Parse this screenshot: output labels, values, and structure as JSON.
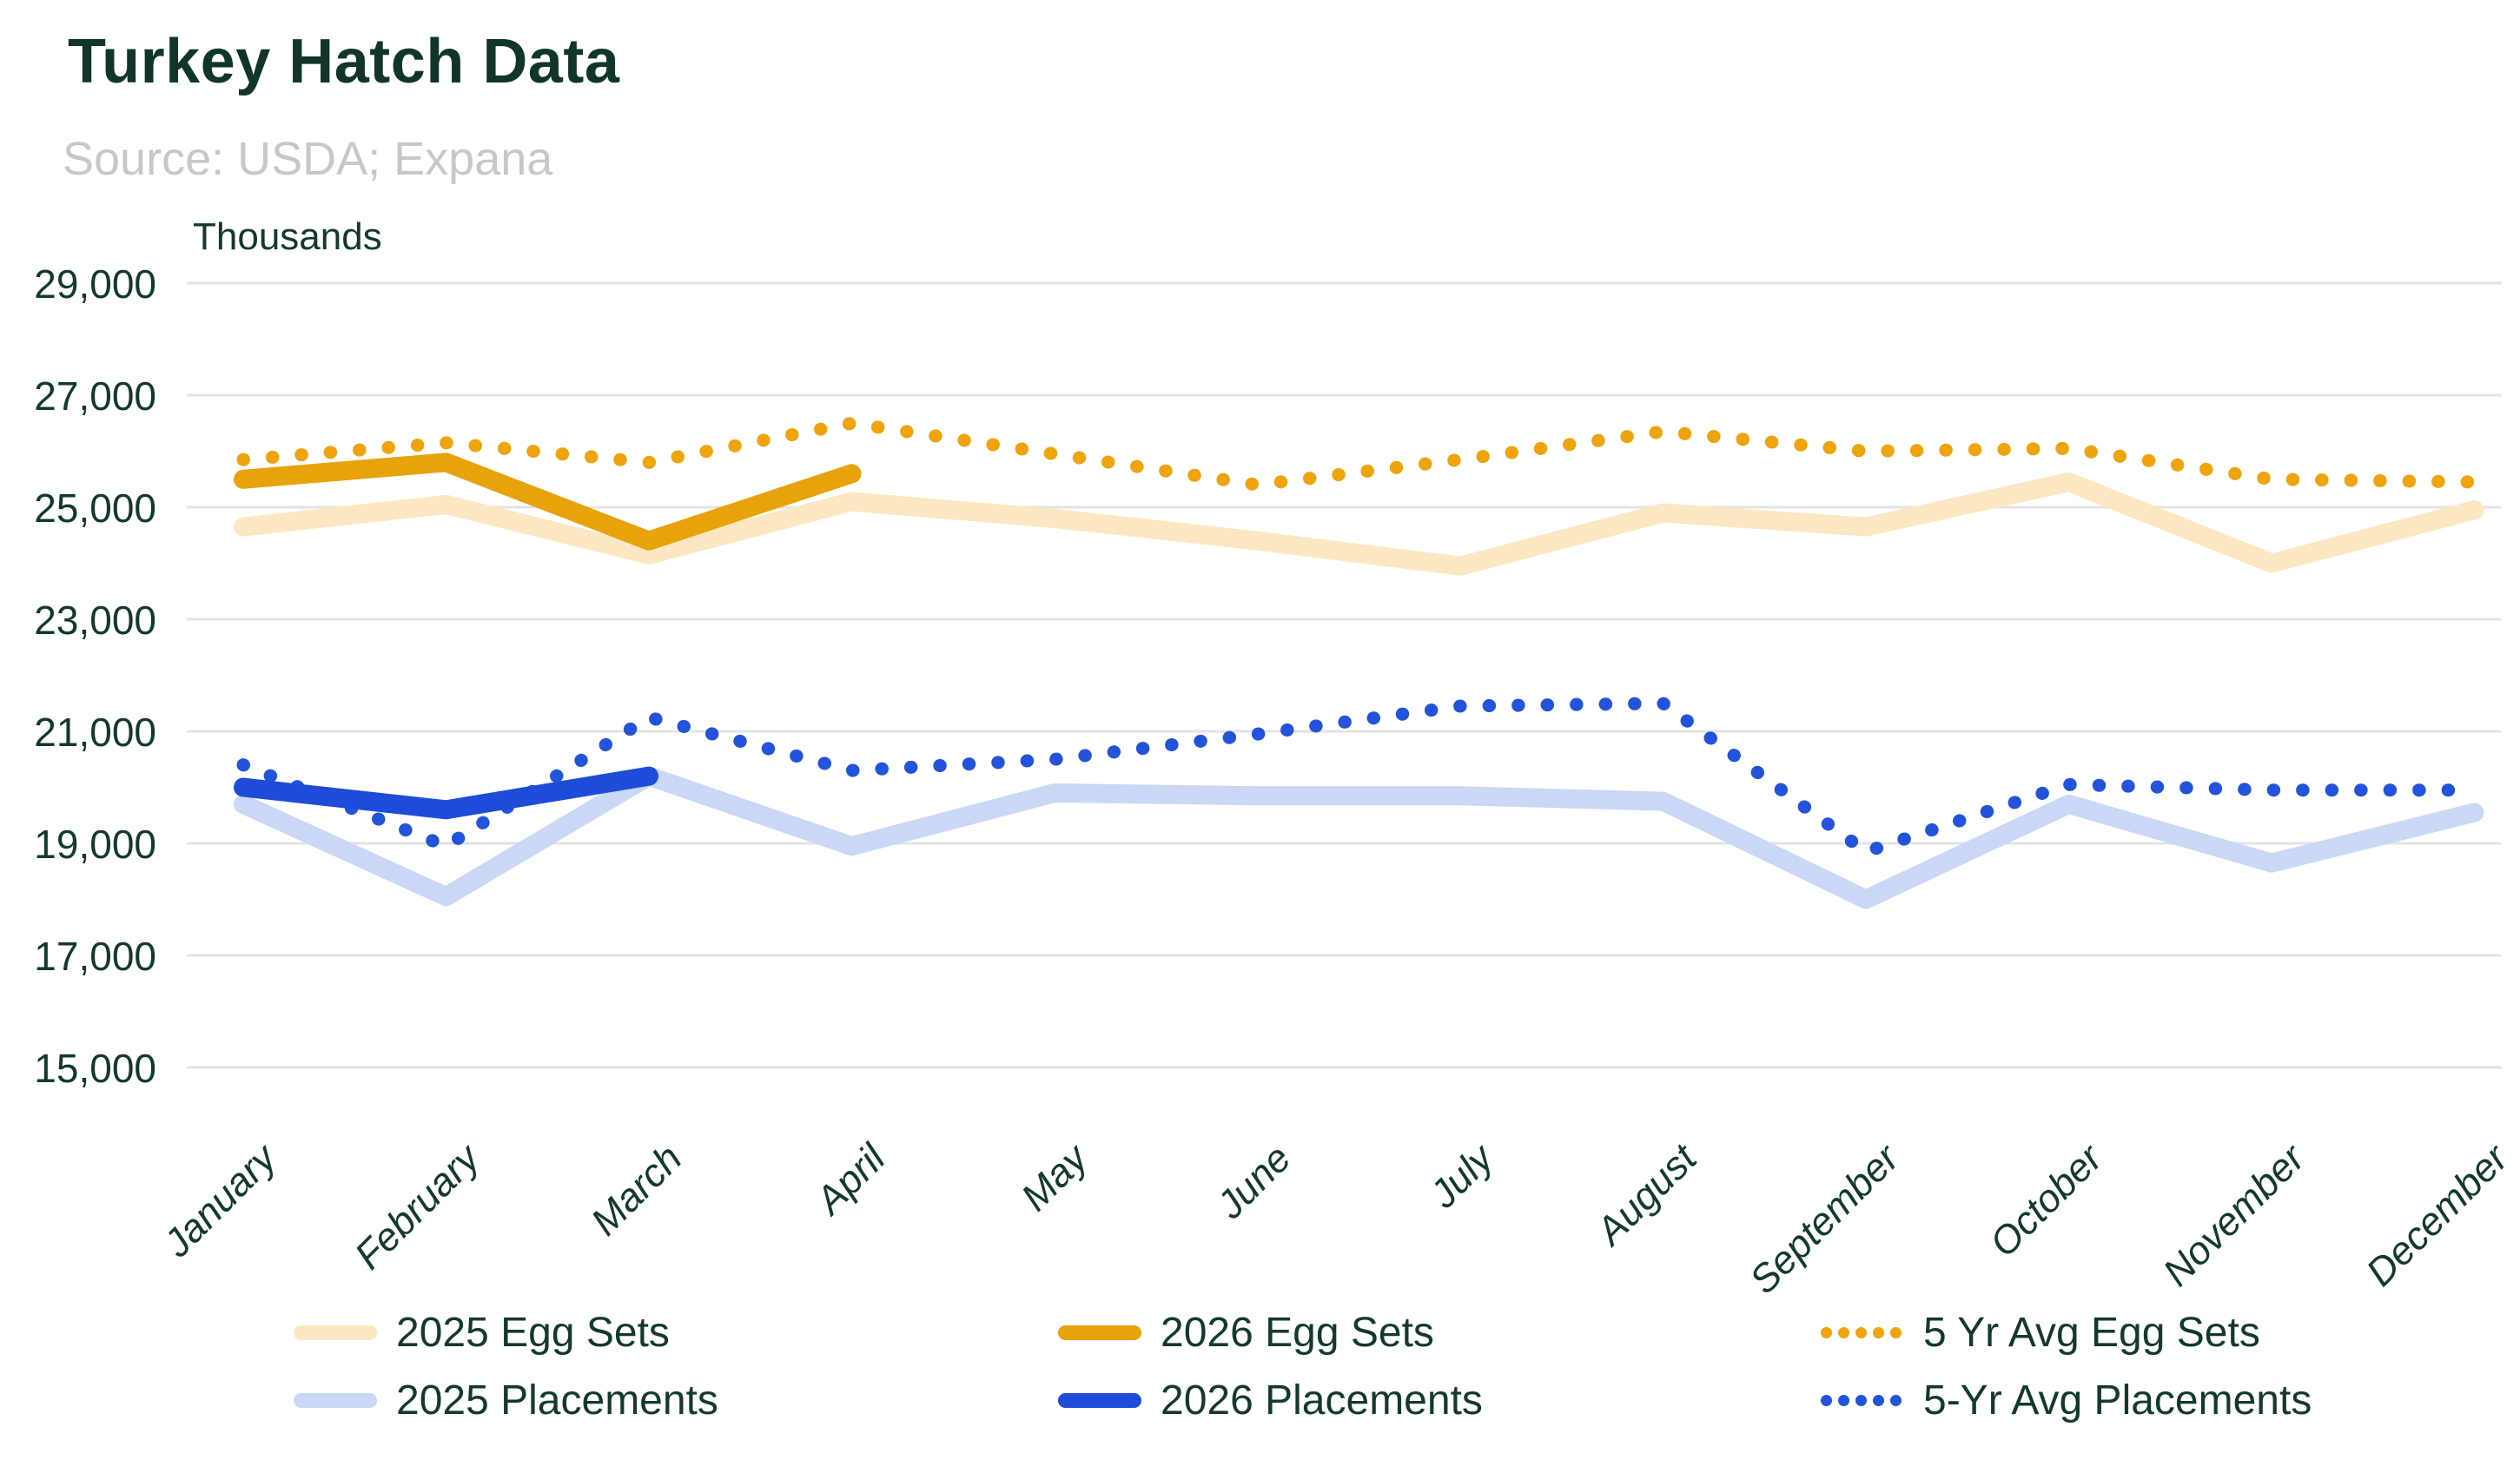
{
  "header": {
    "title": "Turkey Hatch Data",
    "source": "Source: USDA; Expana"
  },
  "chart_data": {
    "type": "line",
    "title": "Turkey Hatch Data",
    "axis_unit_label": "Thousands",
    "categories": [
      "January",
      "February",
      "March",
      "April",
      "May",
      "June",
      "July",
      "August",
      "September",
      "October",
      "November",
      "December"
    ],
    "y_axis": {
      "min": 15000,
      "max": 29000,
      "step": 2000,
      "tick_labels": [
        "29,000",
        "27,000",
        "25,000",
        "23,000",
        "21,000",
        "19,000",
        "17,000",
        "15,000"
      ]
    },
    "grid": "horizontal",
    "legend_position": "bottom",
    "series": [
      {
        "name": "2025 Egg Sets",
        "color": "#FBE7C2",
        "style": "solid",
        "values": [
          24650,
          25050,
          24150,
          25100,
          24800,
          24400,
          23950,
          24900,
          24650,
          25450,
          24000,
          24950
        ]
      },
      {
        "name": "2025 Placements",
        "color": "#CAD7F5",
        "style": "solid",
        "values": [
          19700,
          18050,
          20200,
          18950,
          19900,
          19850,
          19850,
          19750,
          18000,
          19700,
          18650,
          19550
        ]
      },
      {
        "name": "5 Yr Avg Egg Sets",
        "color": "#EFA40D",
        "style": "dotted",
        "values": [
          25850,
          26150,
          25800,
          26500,
          25950,
          25400,
          25850,
          26350,
          26000,
          26050,
          25500,
          25450
        ]
      },
      {
        "name": "5-Yr Avg Placements",
        "color": "#2453DB",
        "style": "dotted",
        "values": [
          20400,
          18950,
          21250,
          20300,
          20500,
          20950,
          21450,
          21500,
          18850,
          20050,
          19950,
          19950
        ]
      },
      {
        "name": "2026 Egg Sets",
        "color": "#E8A20C",
        "style": "solid",
        "values": [
          25500,
          25800,
          24400,
          25600
        ]
      },
      {
        "name": "2026 Placements",
        "color": "#1E4CD8",
        "style": "solid",
        "values": [
          20000,
          19600,
          20200
        ]
      }
    ]
  },
  "legend": {
    "items": [
      {
        "label": "2025 Egg Sets",
        "series": 0
      },
      {
        "label": "2026 Egg Sets",
        "series": 4
      },
      {
        "label": "5 Yr Avg Egg Sets",
        "series": 2
      },
      {
        "label": "2025 Placements",
        "series": 1
      },
      {
        "label": "2026 Placements",
        "series": 5
      },
      {
        "label": "5-Yr Avg Placements",
        "series": 3
      }
    ]
  }
}
